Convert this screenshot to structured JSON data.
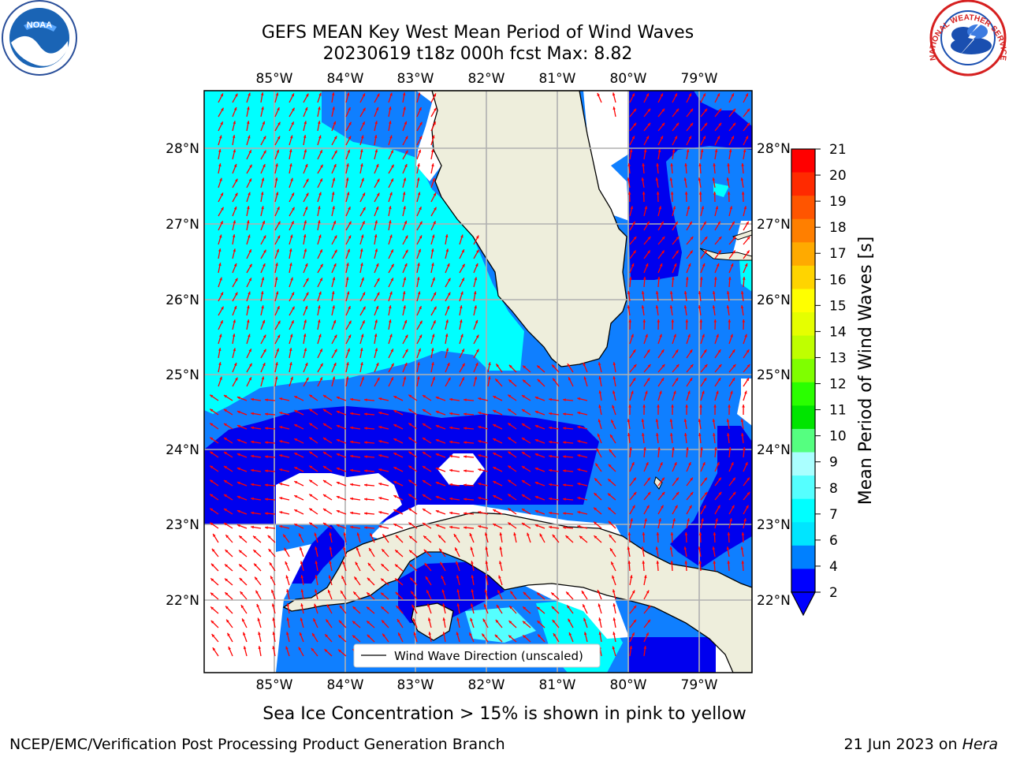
{
  "title_line1": "GEFS MEAN Key West Mean Period of Wind Waves",
  "title_line2": "20230619 t18z 000h fcst   Max: 8.82",
  "lon_ticks": [
    "85°W",
    "84°W",
    "83°W",
    "82°W",
    "81°W",
    "80°W",
    "79°W"
  ],
  "lat_ticks": [
    "28°N",
    "27°N",
    "26°N",
    "25°N",
    "24°N",
    "23°N",
    "22°N"
  ],
  "colorbar": {
    "label": "Mean Period of Wind Waves [s]",
    "ticks": [
      "21",
      "20",
      "19",
      "18",
      "17",
      "16",
      "15",
      "14",
      "13",
      "12",
      "11",
      "10",
      "9",
      "8",
      "7",
      "6",
      "4",
      "2"
    ],
    "colors": [
      "#ff0000",
      "#ff2a00",
      "#ff5500",
      "#ff7f00",
      "#ffaa00",
      "#ffd400",
      "#ffff00",
      "#e5ff00",
      "#bfff00",
      "#7fff00",
      "#2aff00",
      "#00e500",
      "#55ff80",
      "#aaffff",
      "#55ffff",
      "#00ffff",
      "#00e5ff",
      "#0080ff",
      "#0000ff"
    ]
  },
  "legend": "Wind Wave Direction (unscaled)",
  "sea_ice_note": "Sea Ice Concentration > 15% is shown in pink to yellow",
  "footer_left": "NCEP/EMC/Verification Post Processing Product Generation Branch",
  "footer_date": "21 Jun 2023 on ",
  "footer_machine": "Hera",
  "logos": {
    "left": "NOAA",
    "right": "NATIONAL WEATHER SERVICE"
  },
  "colors": {
    "land": "#eeeedc",
    "dark_blue": "#0000ee",
    "mid_blue": "#0f7fff",
    "cyan": "#00ffff",
    "arrow": "#ff0000"
  }
}
